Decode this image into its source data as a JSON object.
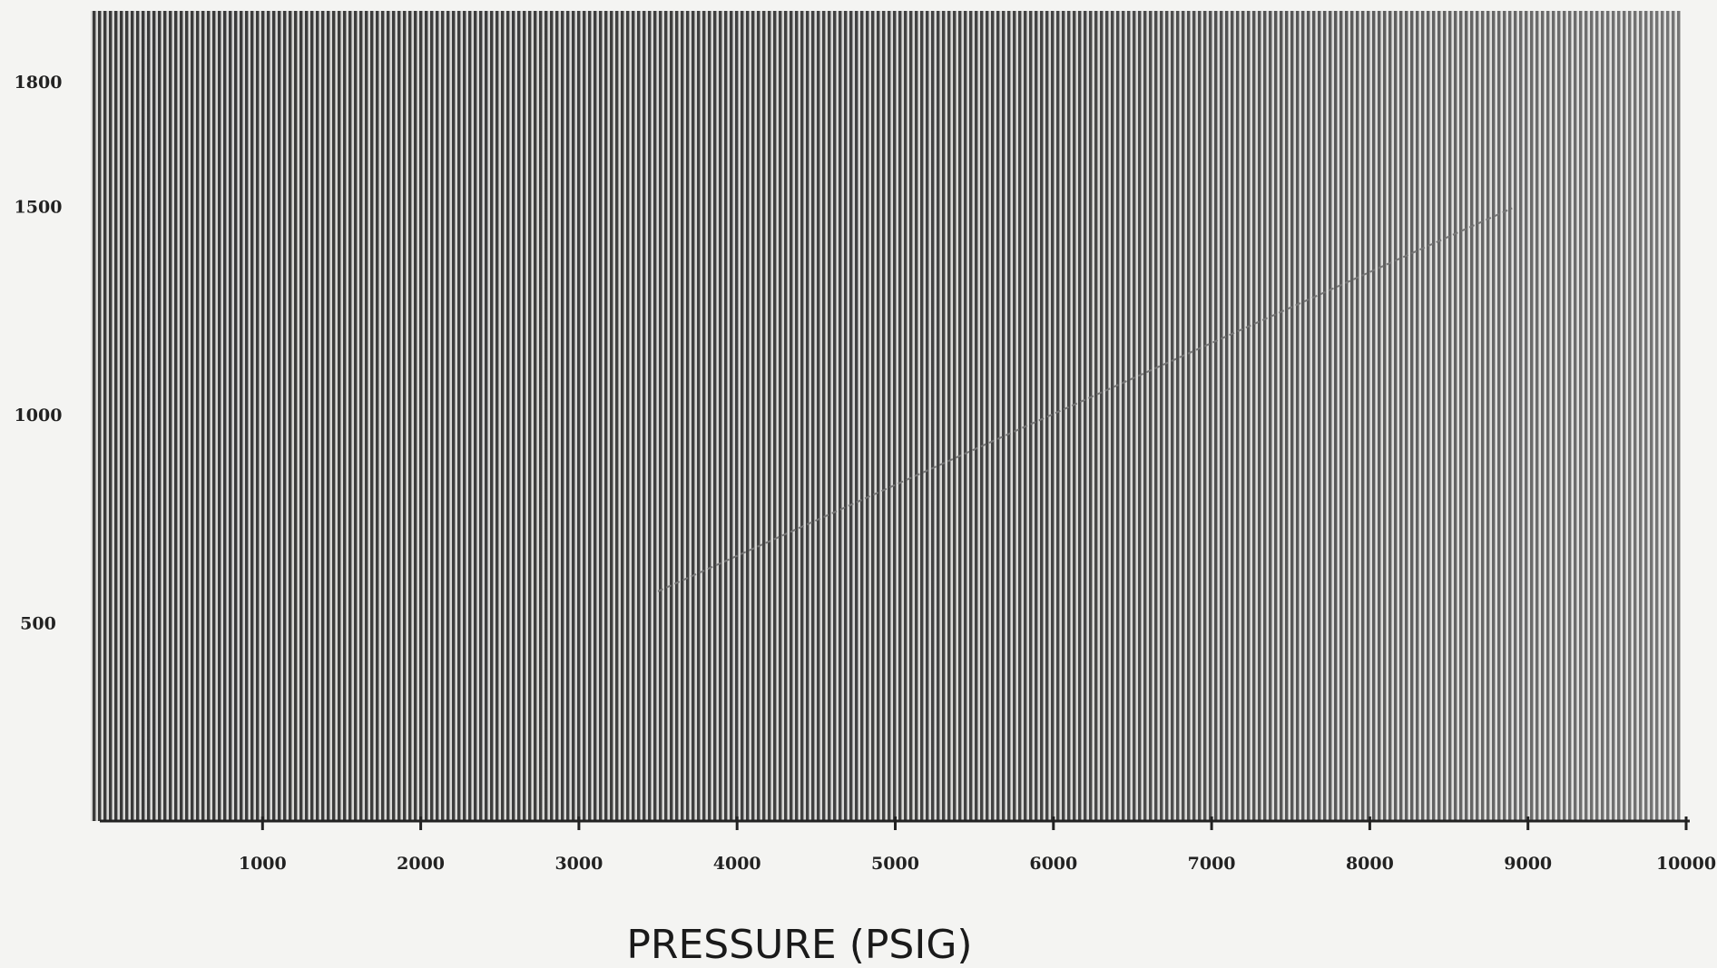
{
  "chart_data": {
    "type": "line",
    "x_label": "PRESSURE (PSIG)",
    "x": [
      3500,
      8900
    ],
    "values": [
      580,
      1500
    ],
    "color": "#777777",
    "xlim": [
      0,
      10000
    ],
    "xticks": [
      1000,
      2000,
      3000,
      4000,
      5000,
      6000,
      7000,
      8000,
      9000,
      10000
    ],
    "ylim": [
      0,
      2000
    ],
    "yticks": [
      500,
      1000,
      1500,
      1800
    ]
  }
}
